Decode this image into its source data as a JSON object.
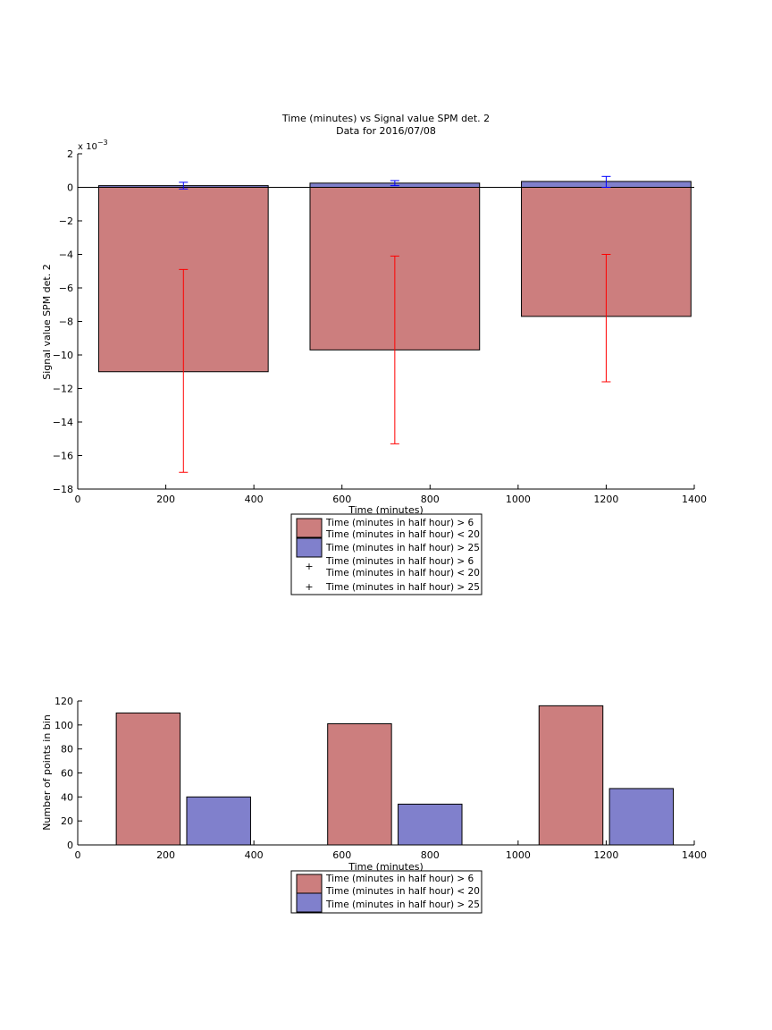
{
  "colors": {
    "group1": "#cc7e7e",
    "group2": "#8080cc",
    "err1": "#ff0000",
    "err2": "#0000ff"
  },
  "chart_data": [
    {
      "type": "bar",
      "title": "Time (minutes) vs Signal value SPM det. 2",
      "subtitle": "Data for 2016/07/08",
      "xlabel": "Time (minutes)",
      "ylabel": "Signal value SPM det. 2",
      "y_exponent_label": "x 10",
      "y_exponent": "−3",
      "xlim": [
        0,
        1400
      ],
      "ylim": [
        -18,
        2
      ],
      "xticks": [
        0,
        200,
        400,
        600,
        800,
        1000,
        1200,
        1400
      ],
      "yticks": [
        2,
        0,
        -2,
        -4,
        -6,
        -8,
        -10,
        -12,
        -14,
        -16,
        -18
      ],
      "bar_width": 385,
      "x": [
        240,
        720,
        1200
      ],
      "series": [
        {
          "name": "Time (minutes in half hour) > 6 Time (minutes in half hour) < 20",
          "values": [
            -11.0,
            -9.7,
            -7.7
          ],
          "err_low": [
            -17.0,
            -15.3,
            -11.6
          ],
          "err_high": [
            -4.9,
            -4.1,
            -4.0
          ]
        },
        {
          "name": "Time (minutes in half hour) > 25",
          "values": [
            0.1,
            0.25,
            0.35
          ],
          "err_low": [
            -0.1,
            0.1,
            0.0
          ],
          "err_high": [
            0.3,
            0.4,
            0.65
          ]
        }
      ],
      "legend": {
        "placement": "below",
        "patch_entries": [
          {
            "lines": [
              "Time (minutes in half hour) > 6",
              "Time (minutes in half hour) < 20"
            ]
          },
          {
            "lines": [
              "Time (minutes in half hour) > 25"
            ]
          }
        ],
        "marker_entries": [
          {
            "lines": [
              "Time (minutes in half hour) > 6",
              "Time (minutes in half hour) < 20"
            ]
          },
          {
            "lines": [
              "Time (minutes in half hour) > 25"
            ]
          }
        ]
      }
    },
    {
      "type": "bar",
      "xlabel": "Time (minutes)",
      "ylabel": "Number of points in bin",
      "xlim": [
        0,
        1400
      ],
      "ylim": [
        0,
        120
      ],
      "xticks": [
        0,
        200,
        400,
        600,
        800,
        1000,
        1200,
        1400
      ],
      "yticks": [
        0,
        20,
        40,
        60,
        80,
        100,
        120
      ],
      "bar_width": 145,
      "series": [
        {
          "name": "Time (minutes in half hour) > 6 Time (minutes in half hour) < 20",
          "x": [
            160,
            640,
            1120
          ],
          "values": [
            110,
            101,
            116
          ]
        },
        {
          "name": "Time (minutes in half hour) > 25",
          "x": [
            320,
            800,
            1280
          ],
          "values": [
            40,
            34,
            47
          ]
        }
      ],
      "legend": {
        "placement": "below",
        "patch_entries": [
          {
            "lines": [
              "Time (minutes in half hour) > 6",
              "Time (minutes in half hour) < 20"
            ]
          },
          {
            "lines": [
              "Time (minutes in half hour) > 25"
            ]
          }
        ]
      }
    }
  ]
}
